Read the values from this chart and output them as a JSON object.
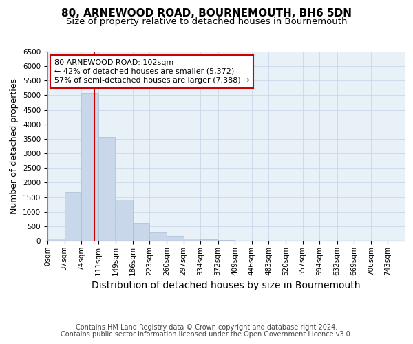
{
  "title": "80, ARNEWOOD ROAD, BOURNEMOUTH, BH6 5DN",
  "subtitle": "Size of property relative to detached houses in Bournemouth",
  "xlabel": "Distribution of detached houses by size in Bournemouth",
  "ylabel": "Number of detached properties",
  "footer_line1": "Contains HM Land Registry data © Crown copyright and database right 2024.",
  "footer_line2": "Contains public sector information licensed under the Open Government Licence v3.0.",
  "bin_labels": [
    "0sqm",
    "37sqm",
    "74sqm",
    "111sqm",
    "149sqm",
    "186sqm",
    "223sqm",
    "260sqm",
    "297sqm",
    "334sqm",
    "372sqm",
    "409sqm",
    "446sqm",
    "483sqm",
    "520sqm",
    "557sqm",
    "594sqm",
    "632sqm",
    "669sqm",
    "706sqm",
    "743sqm"
  ],
  "bin_edges": [
    0,
    37,
    74,
    111,
    149,
    186,
    223,
    260,
    297,
    334,
    372,
    409,
    446,
    483,
    520,
    557,
    594,
    632,
    669,
    706,
    743
  ],
  "bar_heights": [
    75,
    1670,
    5080,
    3580,
    1430,
    610,
    300,
    155,
    75,
    50,
    30,
    10,
    5,
    0,
    0,
    0,
    0,
    0,
    0,
    0
  ],
  "bar_color": "#c8d8ea",
  "bar_edgecolor": "#a8c0d8",
  "annotation_text": "80 ARNEWOOD ROAD: 102sqm\n← 42% of detached houses are smaller (5,372)\n57% of semi-detached houses are larger (7,388) →",
  "annotation_box_facecolor": "#ffffff",
  "annotation_box_edgecolor": "#cc0000",
  "vline_x": 102,
  "vline_color": "#cc0000",
  "ylim": [
    0,
    6500
  ],
  "yticks": [
    0,
    500,
    1000,
    1500,
    2000,
    2500,
    3000,
    3500,
    4000,
    4500,
    5000,
    5500,
    6000,
    6500
  ],
  "grid_color": "#c8d8e8",
  "background_color": "#e8f0f8",
  "title_fontsize": 11,
  "subtitle_fontsize": 9.5,
  "xlabel_fontsize": 10,
  "ylabel_fontsize": 9,
  "tick_fontsize": 7.5,
  "annotation_fontsize": 8,
  "footer_fontsize": 7
}
